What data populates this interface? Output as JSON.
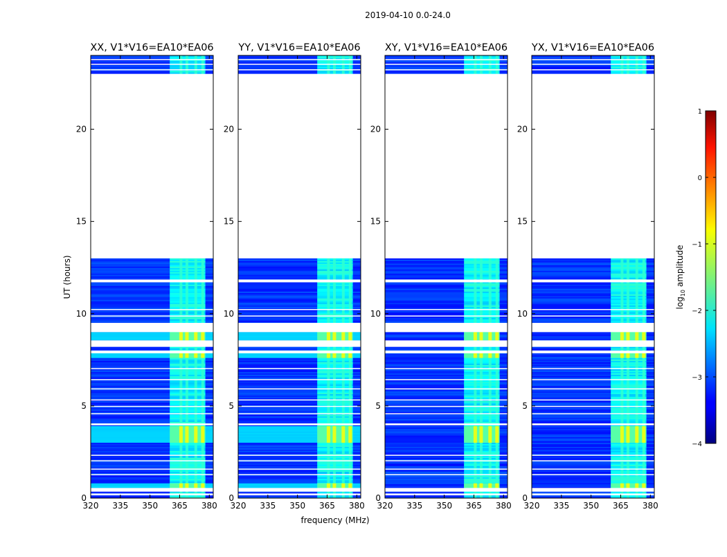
{
  "figure": {
    "title": "2019-04-10 0.0-24.0",
    "xlabel": "frequency (MHz)",
    "ylabel": "UT (hours)"
  },
  "chart_data": {
    "type": "heatmap",
    "title": "2019-04-10 0.0-24.0",
    "xlabel": "frequency (MHz)",
    "ylabel": "UT (hours)",
    "xlim": [
      320,
      382
    ],
    "ylim": [
      0,
      24
    ],
    "xticks": [
      320,
      335,
      350,
      365,
      380
    ],
    "yticks": [
      0,
      5,
      10,
      15,
      20
    ],
    "panels": [
      {
        "title": "XX, V1*V16=EA10*EA06",
        "pol": "XX"
      },
      {
        "title": "YY, V1*V16=EA10*EA06",
        "pol": "YY"
      },
      {
        "title": "XY, V1*V16=EA10*EA06",
        "pol": "XY"
      },
      {
        "title": "YX, V1*V16=EA10*EA06",
        "pol": "YX"
      }
    ],
    "rfi_band_mhz": [
      360,
      378
    ],
    "data_blocks_ut": [
      [
        0.0,
        13.0
      ],
      [
        23.0,
        24.0
      ]
    ],
    "gap_ut": [
      13.0,
      23.0
    ],
    "colorbar": {
      "label": "log10 amplitude",
      "label_base": "log",
      "label_sub": "10",
      "label_rest": " amplitude",
      "range": [
        -4,
        1
      ],
      "ticks": [
        {
          "value": 1,
          "label": "1"
        },
        {
          "value": 0,
          "label": "0"
        },
        {
          "value": -1,
          "label": "−1"
        },
        {
          "value": -2,
          "label": "−2"
        },
        {
          "value": -3,
          "label": "−3"
        },
        {
          "value": -4,
          "label": "−4"
        }
      ],
      "colormap": "jet"
    }
  }
}
